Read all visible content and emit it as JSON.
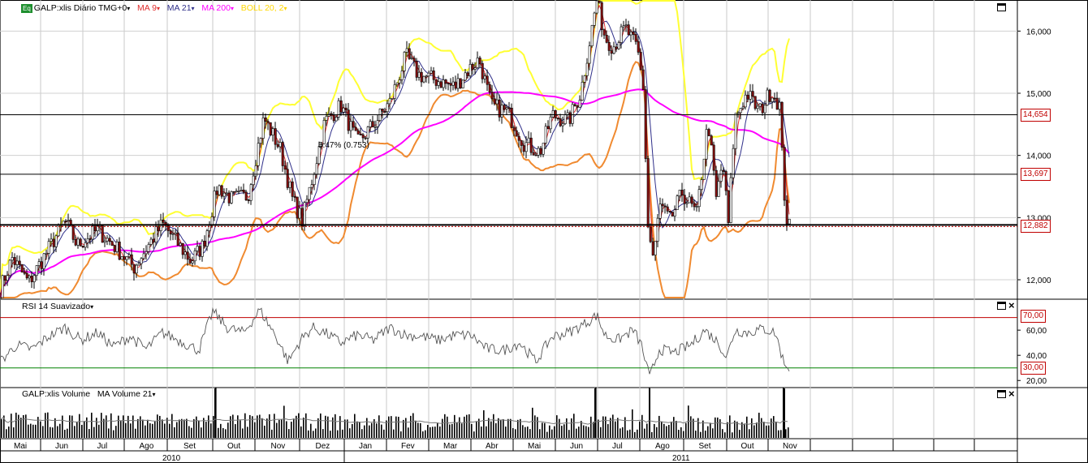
{
  "header": {
    "eq_badge": "Eq",
    "symbol": "GALP:xlis Diário TMG+0",
    "ma9": "MA 9",
    "ma21": "MA 21",
    "ma200": "MA 200",
    "boll": "BOLL 20, 2",
    "dropdown": "▾"
  },
  "rsi_header": {
    "label": "RSI 14 Suavizado",
    "dropdown": "▾"
  },
  "volume_header": {
    "label": "GALP:xlis Volume",
    "ma_label": "MA Volume  21",
    "dropdown": "▾"
  },
  "colors": {
    "price": "#000000",
    "ma9": "#e03030",
    "ma21": "#30308a",
    "ma200": "#ff00ff",
    "boll_upper": "#ffff33",
    "boll_lower": "#f08a30",
    "rsi_upper": "#c00000",
    "rsi_lower": "#008000"
  },
  "annotation": "5.47% (0.753)",
  "price_tags": [
    "14,654",
    "13,697",
    "12,882"
  ],
  "rsi_tags": [
    "70,00",
    "30,00"
  ],
  "chart_data": [
    {
      "type": "line",
      "panel": "price",
      "title": "GALP:xlis Diário TMG+0",
      "y_ticks": [
        "16,000",
        "15,000",
        "14,000",
        "13,000",
        "12,000"
      ],
      "ylim": [
        11.7,
        16.5
      ],
      "horizontal_lines": [
        14.654,
        13.697,
        12.882
      ],
      "series": [
        {
          "name": "MA 9"
        },
        {
          "name": "MA 21"
        },
        {
          "name": "MA 200"
        },
        {
          "name": "BOLL 20, 2"
        }
      ],
      "anchors": [
        [
          0,
          11.85
        ],
        [
          15,
          12.35
        ],
        [
          35,
          11.95
        ],
        [
          60,
          12.5
        ],
        [
          80,
          12.95
        ],
        [
          95,
          12.55
        ],
        [
          120,
          12.8
        ],
        [
          140,
          12.55
        ],
        [
          165,
          12.2
        ],
        [
          180,
          12.5
        ],
        [
          200,
          12.9
        ],
        [
          215,
          12.65
        ],
        [
          235,
          12.3
        ],
        [
          250,
          12.55
        ],
        [
          268,
          13.5
        ],
        [
          285,
          13.3
        ],
        [
          305,
          13.35
        ],
        [
          325,
          14.6
        ],
        [
          345,
          14.1
        ],
        [
          360,
          13.3
        ],
        [
          372,
          12.95
        ],
        [
          385,
          13.65
        ],
        [
          400,
          14.55
        ],
        [
          420,
          14.8
        ],
        [
          440,
          14.2
        ],
        [
          460,
          14.5
        ],
        [
          480,
          14.85
        ],
        [
          500,
          15.6
        ],
        [
          515,
          15.3
        ],
        [
          540,
          15.2
        ],
        [
          560,
          15.1
        ],
        [
          575,
          15.35
        ],
        [
          590,
          15.55
        ],
        [
          605,
          14.8
        ],
        [
          625,
          14.7
        ],
        [
          645,
          14.2
        ],
        [
          665,
          14.05
        ],
        [
          680,
          14.65
        ],
        [
          700,
          14.55
        ],
        [
          715,
          15.0
        ],
        [
          735,
          16.5
        ],
        [
          745,
          15.9
        ],
        [
          755,
          15.75
        ],
        [
          770,
          16.05
        ],
        [
          785,
          15.7
        ],
        [
          792,
          15.1
        ],
        [
          798,
          12.85
        ],
        [
          805,
          12.3
        ],
        [
          812,
          13.2
        ],
        [
          825,
          12.95
        ],
        [
          840,
          13.4
        ],
        [
          858,
          13.05
        ],
        [
          872,
          14.55
        ],
        [
          882,
          13.3
        ],
        [
          890,
          13.9
        ],
        [
          897,
          12.9
        ],
        [
          905,
          14.6
        ],
        [
          920,
          15.0
        ],
        [
          935,
          14.7
        ],
        [
          950,
          15.05
        ],
        [
          960,
          14.8
        ],
        [
          965,
          13.5
        ],
        [
          970,
          12.85
        ]
      ]
    },
    {
      "type": "line",
      "panel": "rsi",
      "title": "RSI 14 Suavizado",
      "y_ticks": [
        "60,00",
        "40,00",
        "20,00"
      ],
      "ylim": [
        15,
        82
      ],
      "levels": [
        70,
        30
      ],
      "anchors": [
        [
          0,
          35
        ],
        [
          20,
          48
        ],
        [
          40,
          45
        ],
        [
          60,
          55
        ],
        [
          80,
          62
        ],
        [
          100,
          52
        ],
        [
          120,
          58
        ],
        [
          140,
          47
        ],
        [
          160,
          55
        ],
        [
          180,
          45
        ],
        [
          200,
          58
        ],
        [
          220,
          52
        ],
        [
          245,
          44
        ],
        [
          262,
          75
        ],
        [
          280,
          62
        ],
        [
          300,
          58
        ],
        [
          320,
          76
        ],
        [
          340,
          55
        ],
        [
          355,
          35
        ],
        [
          370,
          52
        ],
        [
          385,
          62
        ],
        [
          400,
          58
        ],
        [
          420,
          50
        ],
        [
          440,
          56
        ],
        [
          460,
          52
        ],
        [
          480,
          62
        ],
        [
          500,
          56
        ],
        [
          520,
          55
        ],
        [
          540,
          52
        ],
        [
          560,
          56
        ],
        [
          580,
          56
        ],
        [
          600,
          45
        ],
        [
          620,
          44
        ],
        [
          640,
          50
        ],
        [
          660,
          35
        ],
        [
          680,
          55
        ],
        [
          700,
          58
        ],
        [
          720,
          65
        ],
        [
          735,
          72
        ],
        [
          745,
          56
        ],
        [
          760,
          52
        ],
        [
          780,
          60
        ],
        [
          790,
          48
        ],
        [
          800,
          22
        ],
        [
          812,
          45
        ],
        [
          830,
          42
        ],
        [
          850,
          48
        ],
        [
          868,
          60
        ],
        [
          885,
          50
        ],
        [
          895,
          38
        ],
        [
          905,
          60
        ],
        [
          920,
          58
        ],
        [
          940,
          61
        ],
        [
          955,
          58
        ],
        [
          965,
          35
        ],
        [
          972,
          30
        ]
      ]
    },
    {
      "type": "bar",
      "panel": "volume",
      "title": "GALP:xlis Volume",
      "series": [
        {
          "name": "MA Volume  21"
        }
      ],
      "spikes": [
        264,
        732,
        799,
        965
      ]
    }
  ],
  "x_axis": {
    "months": [
      "Mai",
      "Jun",
      "Jul",
      "Ago",
      "Set",
      "Out",
      "Nov",
      "Dez",
      "Jan",
      "Fev",
      "Mar",
      "Abr",
      "Mai",
      "Jun",
      "Jul",
      "Ago",
      "Set",
      "Out",
      "Nov"
    ],
    "years": [
      "2010",
      "2011"
    ]
  }
}
